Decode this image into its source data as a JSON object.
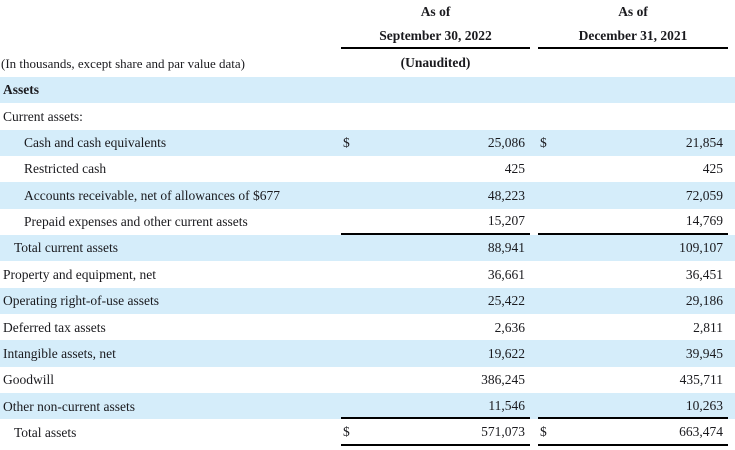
{
  "table": {
    "units_note": "(In thousands, except share and par value data)",
    "columns": [
      {
        "as_of": "As of",
        "date": "September 30, 2022",
        "subnote": "(Unaudited)"
      },
      {
        "as_of": "As of",
        "date": "December 31, 2021",
        "subnote": ""
      }
    ],
    "rows": [
      {
        "label": "Assets",
        "indent": "none",
        "bold": true,
        "bg": "blue",
        "dollar": false,
        "val1": "",
        "val2": "",
        "rule": false
      },
      {
        "label": "Current assets:",
        "indent": "none",
        "bold": false,
        "bg": "white",
        "dollar": false,
        "val1": "",
        "val2": "",
        "rule": false
      },
      {
        "label": "Cash and cash equivalents",
        "indent": "sub",
        "bold": false,
        "bg": "blue",
        "dollar": true,
        "val1": "25,086",
        "val2": "21,854",
        "rule": false
      },
      {
        "label": "Restricted cash",
        "indent": "sub",
        "bold": false,
        "bg": "white",
        "dollar": false,
        "val1": "425",
        "val2": "425",
        "rule": false
      },
      {
        "label": "Accounts receivable, net of allowances of $677",
        "indent": "sub",
        "bold": false,
        "bg": "blue",
        "dollar": false,
        "val1": "48,223",
        "val2": "72,059",
        "rule": false
      },
      {
        "label": "Prepaid expenses and other current assets",
        "indent": "sub",
        "bold": false,
        "bg": "white",
        "dollar": false,
        "val1": "15,207",
        "val2": "14,769",
        "rule": true
      },
      {
        "label": "Total current assets",
        "indent": "total",
        "bold": false,
        "bg": "blue",
        "dollar": false,
        "val1": "88,941",
        "val2": "109,107",
        "rule": false
      },
      {
        "label": "Property and equipment, net",
        "indent": "none",
        "bold": false,
        "bg": "white",
        "dollar": false,
        "val1": "36,661",
        "val2": "36,451",
        "rule": false
      },
      {
        "label": "Operating right-of-use assets",
        "indent": "none",
        "bold": false,
        "bg": "blue",
        "dollar": false,
        "val1": "25,422",
        "val2": "29,186",
        "rule": false
      },
      {
        "label": "Deferred tax assets",
        "indent": "none",
        "bold": false,
        "bg": "white",
        "dollar": false,
        "val1": "2,636",
        "val2": "2,811",
        "rule": false
      },
      {
        "label": "Intangible assets, net",
        "indent": "none",
        "bold": false,
        "bg": "blue",
        "dollar": false,
        "val1": "19,622",
        "val2": "39,945",
        "rule": false
      },
      {
        "label": "Goodwill",
        "indent": "none",
        "bold": false,
        "bg": "white",
        "dollar": false,
        "val1": "386,245",
        "val2": "435,711",
        "rule": false
      },
      {
        "label": "Other non-current assets",
        "indent": "none",
        "bold": false,
        "bg": "blue",
        "dollar": false,
        "val1": "11,546",
        "val2": "10,263",
        "rule": true
      },
      {
        "label": "Total assets",
        "indent": "total",
        "bold": false,
        "bg": "white",
        "dollar": true,
        "val1": "571,073",
        "val2": "663,474",
        "rule": true
      }
    ],
    "dollar_symbol": "$"
  },
  "colors": {
    "highlight_blue": "#d5edfa",
    "rule_black": "#000000",
    "text": "#1a1a1e"
  }
}
